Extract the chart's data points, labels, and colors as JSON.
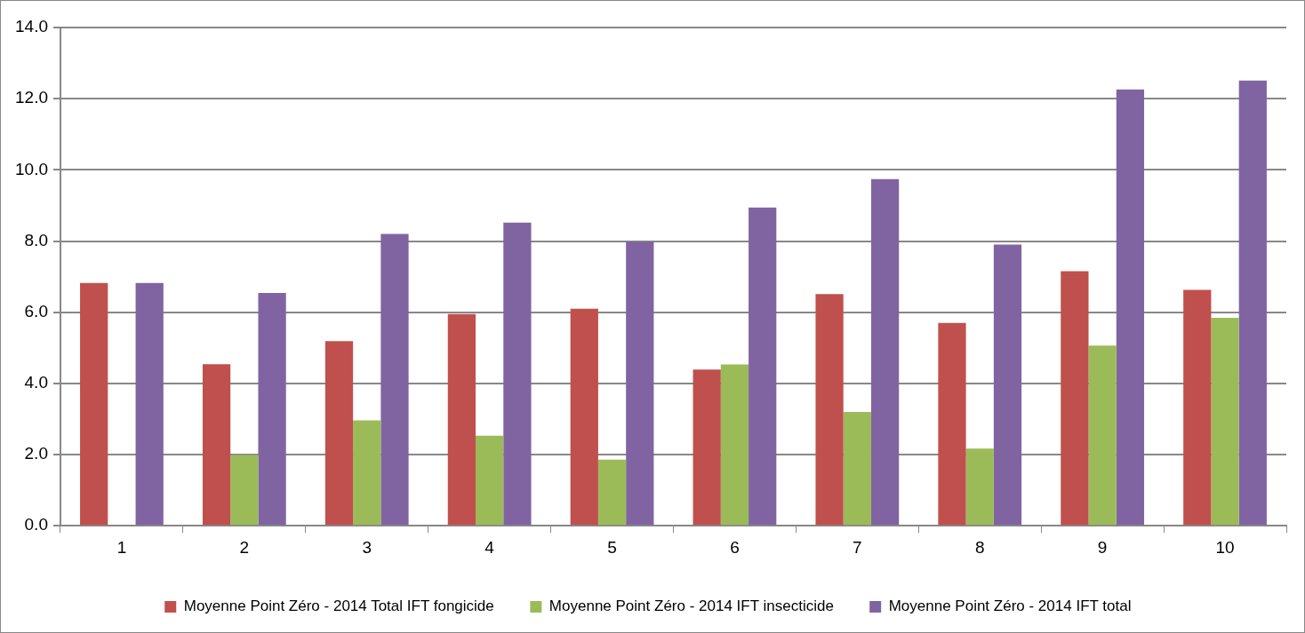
{
  "chart_data": {
    "type": "bar",
    "categories": [
      "1",
      "2",
      "3",
      "4",
      "5",
      "6",
      "7",
      "8",
      "9",
      "10"
    ],
    "series": [
      {
        "name": "Moyenne Point Zéro - 2014 Total IFT fongicide",
        "color": "#c0504d",
        "values": [
          6.82,
          4.54,
          5.19,
          5.95,
          6.1,
          4.39,
          6.51,
          5.7,
          7.15,
          6.63
        ]
      },
      {
        "name": "Moyenne Point Zéro - 2014 IFT insecticide",
        "color": "#9bbb59",
        "values": [
          0,
          1.99,
          2.96,
          2.53,
          1.86,
          4.53,
          3.2,
          2.17,
          5.06,
          5.84
        ]
      },
      {
        "name": "Moyenne Point Zéro - 2014 IFT total",
        "color": "#8064a2",
        "values": [
          6.82,
          6.54,
          8.2,
          8.52,
          7.98,
          8.94,
          9.74,
          7.9,
          12.26,
          12.51
        ]
      }
    ],
    "ylim": [
      0,
      14
    ],
    "yticks": [
      {
        "value": 0,
        "label": "0.0"
      },
      {
        "value": 2,
        "label": "2.0"
      },
      {
        "value": 4,
        "label": "4.0"
      },
      {
        "value": 6,
        "label": "6.0"
      },
      {
        "value": 8,
        "label": "8.0"
      },
      {
        "value": 10,
        "label": "10.0"
      },
      {
        "value": 12,
        "label": "12.0"
      },
      {
        "value": 14,
        "label": "14.0"
      }
    ],
    "grid": "y",
    "legend": "bottom"
  }
}
